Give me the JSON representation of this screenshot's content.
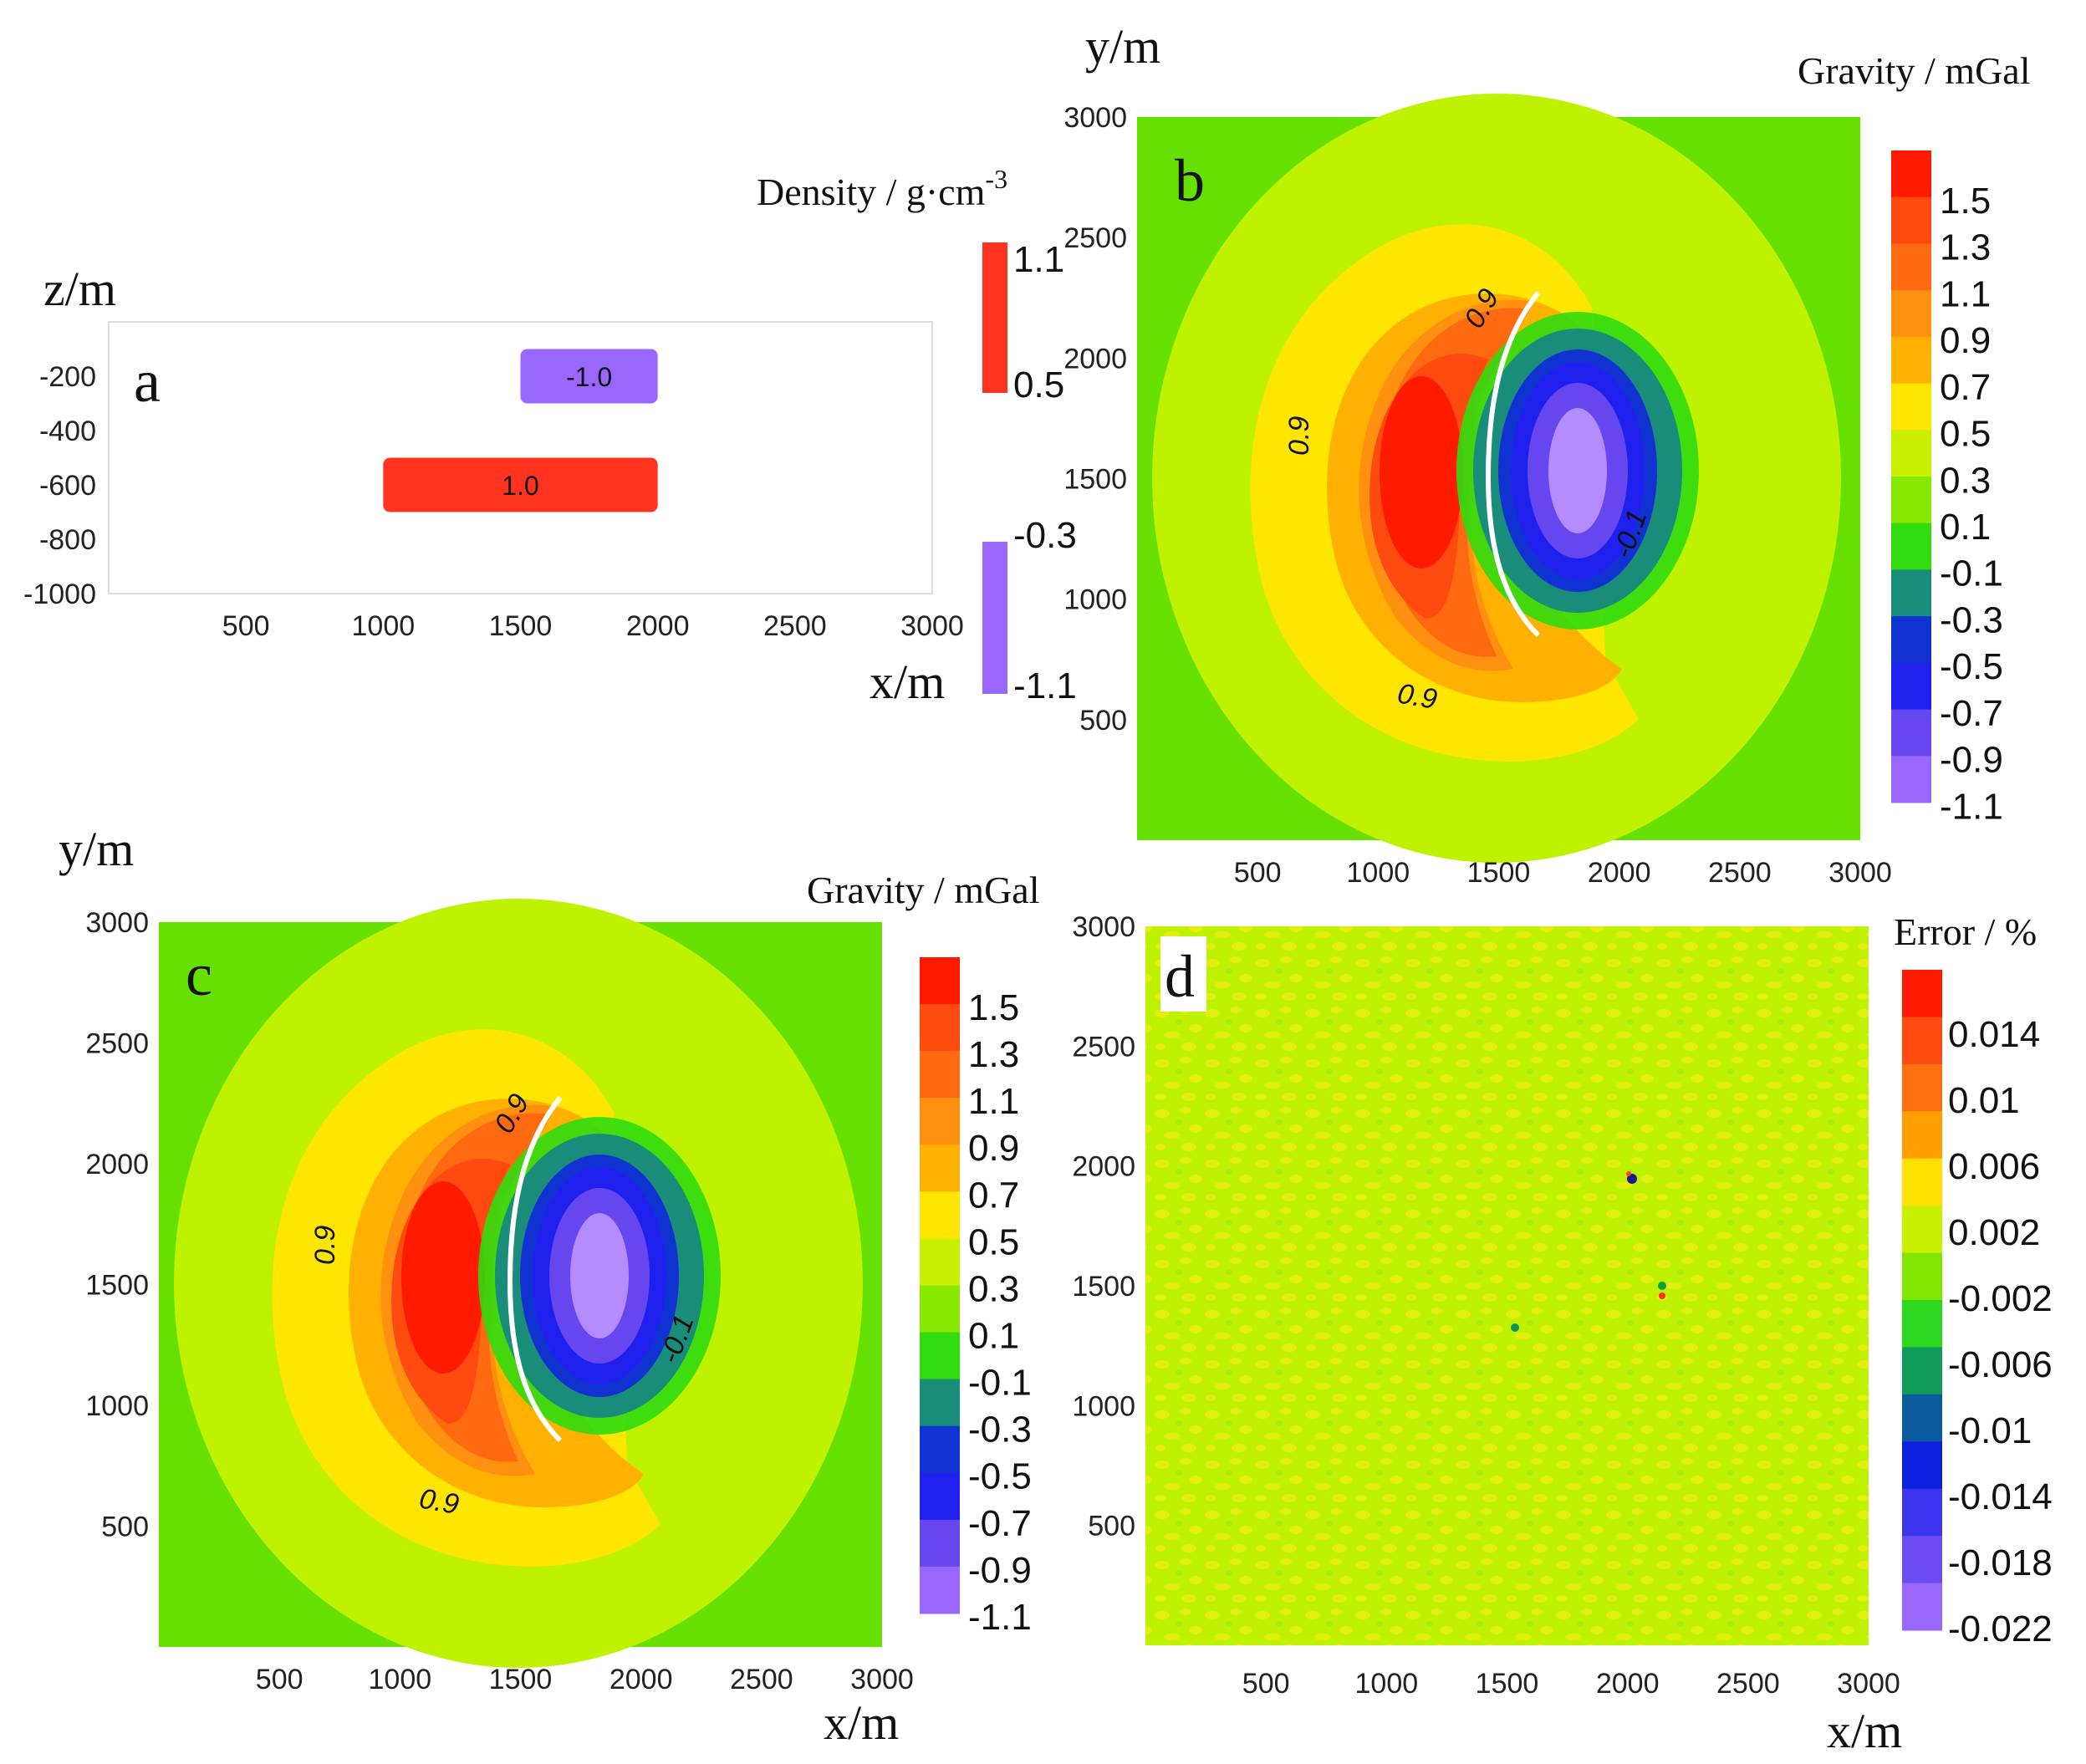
{
  "chart_data": [
    {
      "type": "bar",
      "panel_label": "a",
      "xlabel": "x/m",
      "ylabel": "z/m",
      "xlim": [
        0,
        3000
      ],
      "ylim": [
        -1000,
        0
      ],
      "xticks": [
        500,
        1000,
        1500,
        2000,
        2500,
        3000
      ],
      "yticks": [
        -200,
        -400,
        -600,
        -800,
        -1000
      ],
      "bodies": [
        {
          "label": "-1.0",
          "density": -1.0,
          "x_range": [
            1500,
            2000
          ],
          "z_range": [
            -100,
            -300
          ],
          "color": "#9966ff"
        },
        {
          "label": "1.0",
          "density": 1.0,
          "x_range": [
            1000,
            2000
          ],
          "z_range": [
            -500,
            -700
          ],
          "color": "#ff3320"
        }
      ],
      "colorbar": {
        "title_main": "Density / g·cm",
        "title_exp": "-3",
        "ticks": [
          "1.1",
          "0.5",
          "-0.3",
          "-1.1"
        ],
        "colors": [
          "#ff3320",
          "#ffffff",
          "#9966ff"
        ]
      }
    },
    {
      "type": "heatmap",
      "panel_label": "b",
      "ylabel": "y/m",
      "xlim": [
        0,
        3000
      ],
      "ylim": [
        0,
        3000
      ],
      "xticks": [
        500,
        1000,
        1500,
        2000,
        2500,
        3000
      ],
      "yticks": [
        500,
        1000,
        1500,
        2000,
        2500,
        3000
      ],
      "contour_labels": [
        "0.9",
        "0.9",
        "0.9",
        "-0.1"
      ],
      "colorbar": {
        "title": "Gravity / mGal",
        "ticks": [
          "1.5",
          "1.3",
          "1.1",
          "0.9",
          "0.7",
          "0.5",
          "0.3",
          "0.1",
          "-0.1",
          "-0.3",
          "-0.5",
          "-0.7",
          "-0.9",
          "-1.1"
        ],
        "colors": [
          "#ff1a00",
          "#ff4a10",
          "#ff6a10",
          "#ff9010",
          "#ffb000",
          "#ffe600",
          "#c8f000",
          "#88e800",
          "#30dc10",
          "#1a8c7a",
          "#1032d0",
          "#2020ee",
          "#6646ee",
          "#9966ff"
        ]
      }
    },
    {
      "type": "heatmap",
      "panel_label": "c",
      "xlabel": "x/m",
      "ylabel": "y/m",
      "xlim": [
        0,
        3000
      ],
      "ylim": [
        0,
        3000
      ],
      "xticks": [
        500,
        1000,
        1500,
        2000,
        2500,
        3000
      ],
      "yticks": [
        500,
        1000,
        1500,
        2000,
        2500,
        3000
      ],
      "contour_labels": [
        "0.9",
        "0.9",
        "0.9",
        "-0.1"
      ],
      "colorbar": {
        "title": "Gravity / mGal",
        "ticks": [
          "1.5",
          "1.3",
          "1.1",
          "0.9",
          "0.7",
          "0.5",
          "0.3",
          "0.1",
          "-0.1",
          "-0.3",
          "-0.5",
          "-0.7",
          "-0.9",
          "-1.1"
        ],
        "colors": [
          "#ff1a00",
          "#ff4a10",
          "#ff6a10",
          "#ff9010",
          "#ffb000",
          "#ffe600",
          "#c8f000",
          "#88e800",
          "#30dc10",
          "#1a8c7a",
          "#1032d0",
          "#2020ee",
          "#6646ee",
          "#9966ff"
        ]
      }
    },
    {
      "type": "heatmap",
      "panel_label": "d",
      "xlabel": "x/m",
      "xlim": [
        0,
        3000
      ],
      "ylim": [
        0,
        3000
      ],
      "xticks": [
        500,
        1000,
        1500,
        2000,
        2500,
        3000
      ],
      "yticks": [
        500,
        1000,
        1500,
        2000,
        2500,
        3000
      ],
      "colorbar": {
        "title": "Error / %",
        "ticks": [
          "0.014",
          "0.01",
          "0.006",
          "0.002",
          "-0.002",
          "-0.006",
          "-0.01",
          "-0.014",
          "-0.018",
          "-0.022"
        ],
        "colors": [
          "#ff1a00",
          "#ff4a10",
          "#ff7010",
          "#ffa000",
          "#ffe000",
          "#c8f000",
          "#80e800",
          "#2fd820",
          "#0f9a5a",
          "#0a5aa0",
          "#1020e0",
          "#3a34ee",
          "#6a4cf0",
          "#9966ff"
        ]
      }
    }
  ]
}
